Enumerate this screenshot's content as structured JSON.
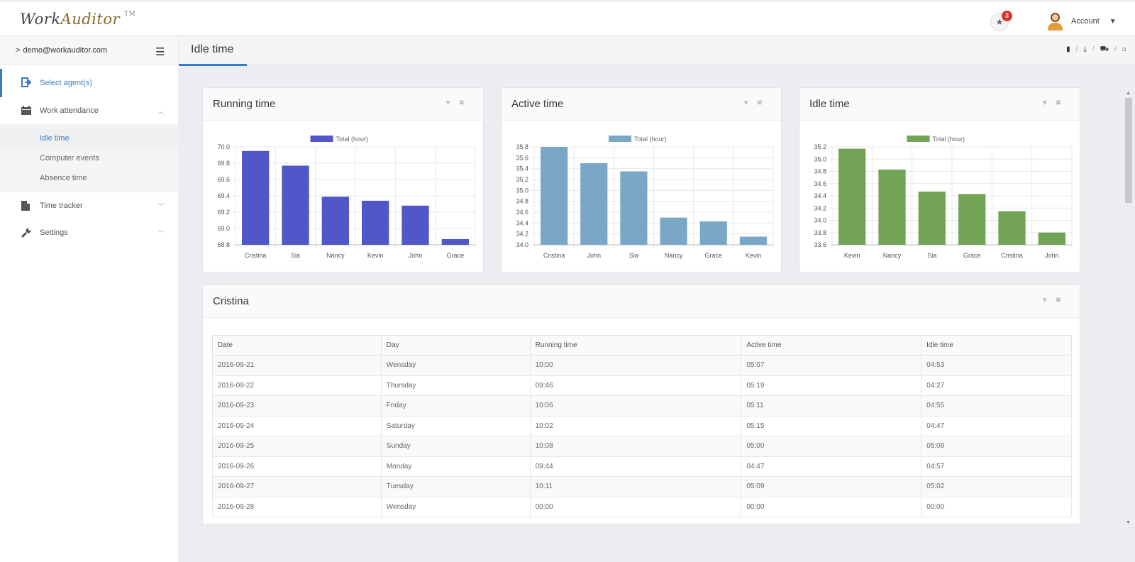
{
  "app": {
    "logo_a": "Work",
    "logo_b": "Auditor",
    "tm": "TM"
  },
  "header": {
    "notif_count": "3",
    "account_label": "Account"
  },
  "sidebar": {
    "user": "demo@workauditor.com",
    "items": [
      {
        "label": "Select agent(s)",
        "icon": "sign-in-icon"
      },
      {
        "label": "Work attendance",
        "icon": "calendar-icon"
      },
      {
        "label": "Time tracker",
        "icon": "file-icon"
      },
      {
        "label": "Settings",
        "icon": "wrench-icon"
      }
    ],
    "subitems": [
      "Idle time",
      "Computer events",
      "Absence time"
    ]
  },
  "page": {
    "title": "Idle time"
  },
  "charts": [
    {
      "title": "Running time",
      "legend": "Total (hour)",
      "color": "#5157c9",
      "categories": [
        "Cristina",
        "Sia",
        "Nancy",
        "Kevin",
        "John",
        "Grace"
      ],
      "values": [
        69.95,
        69.77,
        69.39,
        69.34,
        69.28,
        68.87
      ],
      "ymin": 68.8,
      "ymax": 70.0,
      "ticks": [
        "70.0",
        "69.8",
        "69.6",
        "69.4",
        "69.2",
        "69.0",
        "68.8"
      ]
    },
    {
      "title": "Active time",
      "legend": "Total (hour)",
      "color": "#7aa7c6",
      "categories": [
        "Cristina",
        "John",
        "Sia",
        "Nancy",
        "Grace",
        "Kevin"
      ],
      "values": [
        35.8,
        35.5,
        35.35,
        34.5,
        34.43,
        34.15
      ],
      "ymin": 34.0,
      "ymax": 35.8,
      "ticks": [
        "35.8",
        "35.6",
        "35.4",
        "35.2",
        "35.0",
        "34.8",
        "34.6",
        "34.4",
        "34.2",
        "34.0"
      ]
    },
    {
      "title": "Idle time",
      "legend": "Total (hour)",
      "color": "#73a356",
      "categories": [
        "Kevin",
        "Nancy",
        "Sia",
        "Grace",
        "Cristina",
        "John"
      ],
      "values": [
        35.17,
        34.83,
        34.47,
        34.43,
        34.15,
        33.8
      ],
      "ymin": 33.6,
      "ymax": 35.2,
      "ticks": [
        "35.2",
        "35.0",
        "34.8",
        "34.6",
        "34.4",
        "34.2",
        "34.0",
        "33.8",
        "33.6"
      ]
    }
  ],
  "chart_data": [
    {
      "type": "bar",
      "title": "Running time",
      "series": [
        {
          "name": "Total (hour)",
          "values": [
            69.95,
            69.77,
            69.39,
            69.34,
            69.28,
            68.87
          ]
        }
      ],
      "categories": [
        "Cristina",
        "Sia",
        "Nancy",
        "Kevin",
        "John",
        "Grace"
      ],
      "ylim": [
        68.8,
        70.0
      ]
    },
    {
      "type": "bar",
      "title": "Active time",
      "series": [
        {
          "name": "Total (hour)",
          "values": [
            35.8,
            35.5,
            35.35,
            34.5,
            34.43,
            34.15
          ]
        }
      ],
      "categories": [
        "Cristina",
        "John",
        "Sia",
        "Nancy",
        "Grace",
        "Kevin"
      ],
      "ylim": [
        34.0,
        35.8
      ]
    },
    {
      "type": "bar",
      "title": "Idle time",
      "series": [
        {
          "name": "Total (hour)",
          "values": [
            35.17,
            34.83,
            34.47,
            34.43,
            34.15,
            33.8
          ]
        }
      ],
      "categories": [
        "Kevin",
        "Nancy",
        "Sia",
        "Grace",
        "Cristina",
        "John"
      ],
      "ylim": [
        33.6,
        35.2
      ]
    }
  ],
  "detail": {
    "title": "Cristina",
    "columns": [
      "Date",
      "Day",
      "Running time",
      "Active time",
      "Idle time"
    ],
    "rows": [
      [
        "2016-09-21",
        "Wensday",
        "10:00",
        "05:07",
        "04:53"
      ],
      [
        "2016-09-22",
        "Thursday",
        "09:46",
        "05:19",
        "04:27"
      ],
      [
        "2016-09-23",
        "Friday",
        "10:06",
        "05:11",
        "04:55"
      ],
      [
        "2016-09-24",
        "Saturday",
        "10:02",
        "05:15",
        "04:47"
      ],
      [
        "2016-09-25",
        "Sunday",
        "10:08",
        "05:00",
        "05:08"
      ],
      [
        "2016-09-26",
        "Monday",
        "09:44",
        "04:47",
        "04:57"
      ],
      [
        "2016-09-27",
        "Tuesday",
        "10:11",
        "05:09",
        "05:02"
      ],
      [
        "2016-09-28",
        "Wensday",
        "00:00",
        "00:00",
        "00:00"
      ]
    ]
  }
}
